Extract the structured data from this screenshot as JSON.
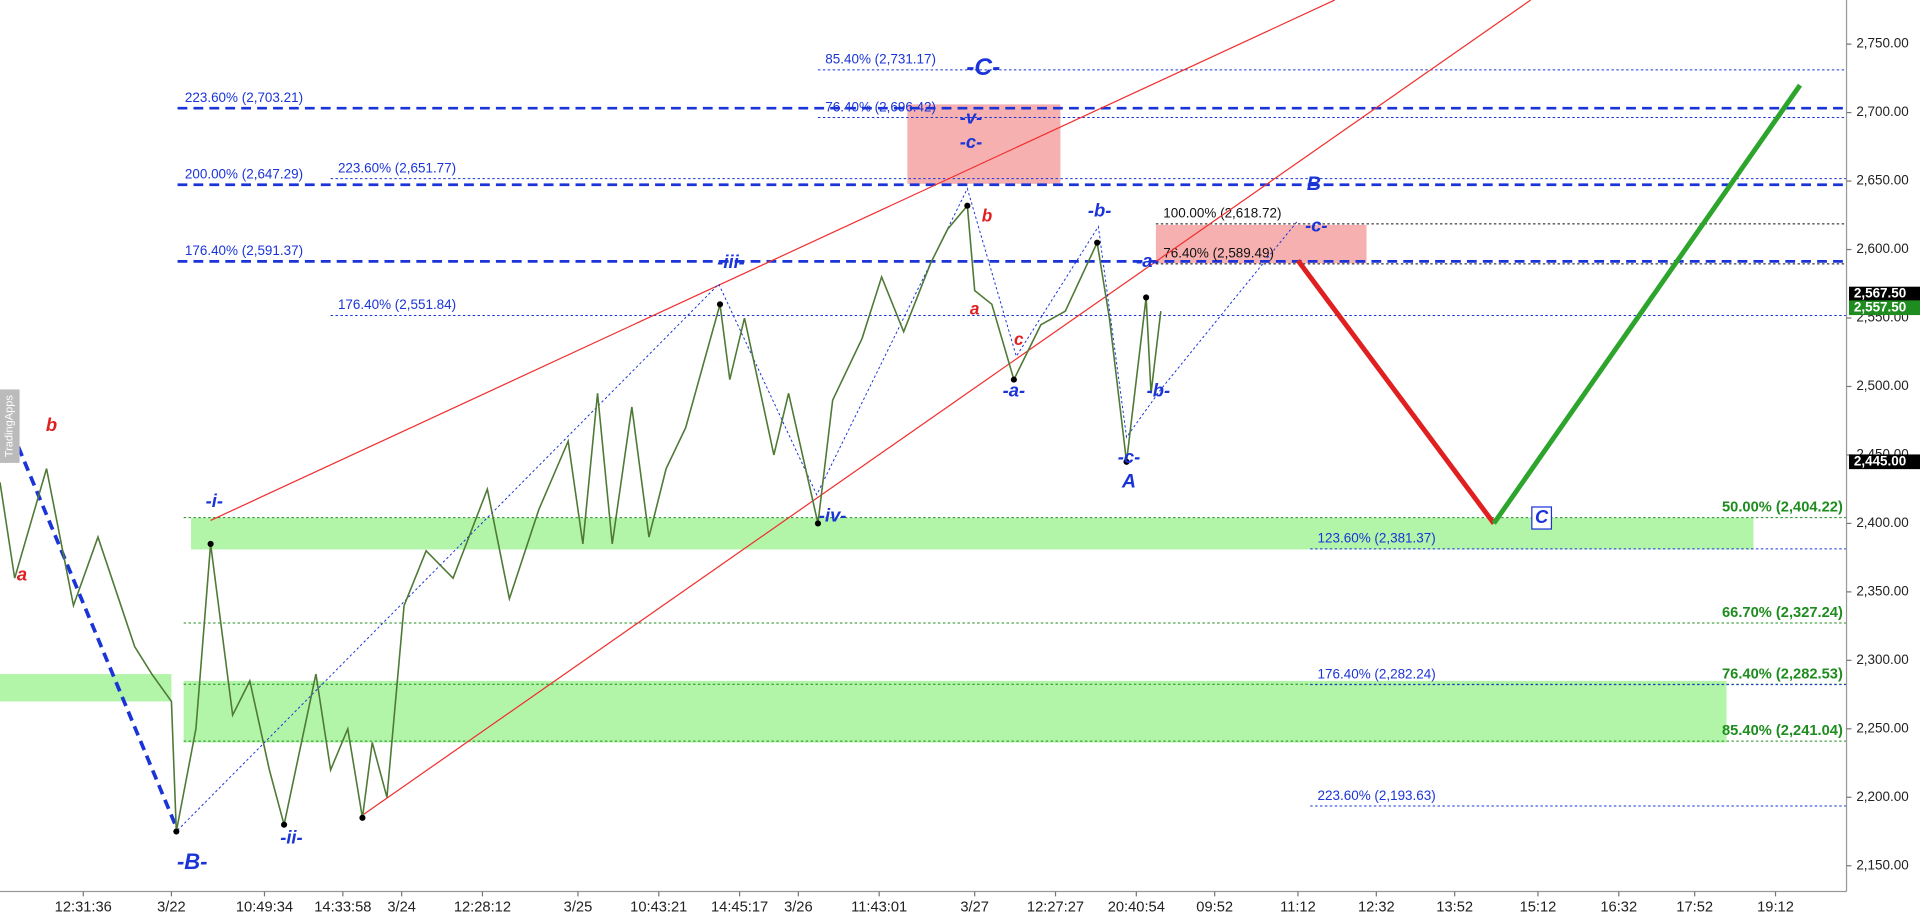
{
  "chart_data": {
    "type": "line",
    "watermark": "TradingApps",
    "xlim": [
      0,
      377
    ],
    "xticks": [
      {
        "value": 17,
        "label": "12:31:36"
      },
      {
        "value": 35,
        "label": "3/22"
      },
      {
        "value": 54,
        "label": "10:49:34"
      },
      {
        "value": 70,
        "label": "14:33:58"
      },
      {
        "value": 82,
        "label": "3/24"
      },
      {
        "value": 98.5,
        "label": "12:28:12"
      },
      {
        "value": 118,
        "label": "3/25"
      },
      {
        "value": 134.5,
        "label": "10:43:21"
      },
      {
        "value": 151,
        "label": "14:45:17"
      },
      {
        "value": 163,
        "label": "3/26"
      },
      {
        "value": 179.5,
        "label": "11:43:01"
      },
      {
        "value": 199,
        "label": "3/27"
      },
      {
        "value": 215.5,
        "label": "12:27:27"
      },
      {
        "value": 232,
        "label": "20:40:54"
      },
      {
        "value": 248,
        "label": "09:52"
      },
      {
        "value": 265,
        "label": "11:12"
      },
      {
        "value": 281,
        "label": "12:32"
      },
      {
        "value": 297,
        "label": "13:52"
      },
      {
        "value": 314,
        "label": "15:12"
      },
      {
        "value": 330.5,
        "label": "16:32"
      },
      {
        "value": 346,
        "label": "17:52"
      },
      {
        "value": 362.5,
        "label": "19:12"
      }
    ],
    "ylim": [
      2150,
      2750
    ],
    "yticks": [
      {
        "value": 2150,
        "label": "2,150.00"
      },
      {
        "value": 2200,
        "label": "2,200.00"
      },
      {
        "value": 2250,
        "label": "2,250.00"
      },
      {
        "value": 2300,
        "label": "2,300.00"
      },
      {
        "value": 2350,
        "label": "2,350.00"
      },
      {
        "value": 2400,
        "label": "2,400.00"
      },
      {
        "value": 2450,
        "label": "2,450.00"
      },
      {
        "value": 2500,
        "label": "2,500.00"
      },
      {
        "value": 2550,
        "label": "2,550.00"
      },
      {
        "value": 2600,
        "label": "2,600.00"
      },
      {
        "value": 2650,
        "label": "2,650.00"
      },
      {
        "value": 2700,
        "label": "2,700.00"
      },
      {
        "value": 2750,
        "label": "2,750.00"
      }
    ],
    "series": [
      {
        "name": "Price",
        "color": "#4f7a36",
        "x": [
          0,
          3,
          9.5,
          15,
          20,
          27.5,
          31,
          35,
          36,
          40,
          43,
          47.5,
          51,
          55,
          58,
          64.5,
          67.5,
          71,
          74,
          76,
          79,
          82.5,
          87,
          92.5,
          99.5,
          104,
          110,
          116,
          119,
          122,
          125,
          129,
          132.5,
          136,
          140,
          147,
          149,
          152,
          158,
          161,
          167,
          170,
          176,
          180,
          184.5,
          190,
          193.5,
          197.5,
          199,
          202.5,
          207,
          212.5,
          217.5,
          224,
          226.5,
          230,
          234,
          235,
          237
        ],
        "values": [
          2430,
          2360,
          2440,
          2340,
          2390,
          2310,
          2290,
          2270,
          2175,
          2250,
          2385,
          2260,
          2285,
          2220,
          2180,
          2290,
          2220,
          2250,
          2185,
          2240,
          2200,
          2340,
          2380,
          2360,
          2425,
          2345,
          2410,
          2460,
          2385,
          2495,
          2385,
          2485,
          2390,
          2440,
          2470,
          2560,
          2505,
          2550,
          2450,
          2495,
          2400,
          2490,
          2535,
          2580,
          2540,
          2590,
          2615,
          2632,
          2570,
          2560,
          2505,
          2545,
          2555,
          2605,
          2550,
          2445,
          2565,
          2495,
          2555
        ]
      },
      {
        "name": "Decline",
        "color": "#e02020",
        "x": [
          265,
          305
        ],
        "values": [
          2592,
          2400
        ]
      },
      {
        "name": "Rally",
        "color": "#2da52d",
        "x": [
          305,
          367.5
        ],
        "values": [
          2400,
          2720
        ]
      }
    ],
    "price_tags": [
      {
        "value": 2567.5,
        "label": "2,567.50",
        "color": "#000000"
      },
      {
        "value": 2557.5,
        "label": "2,557.50",
        "color": "#1e8c1e"
      },
      {
        "value": 2445,
        "label": "2,445.00",
        "color": "#000000"
      }
    ],
    "zones": [
      {
        "low": 2590,
        "high": 2618,
        "color": "#f7b0b0"
      },
      {
        "low": 2648,
        "high": 2706,
        "color": "#f7b0b0"
      },
      {
        "low": 2381,
        "high": 2404,
        "color": "#b2f5a9"
      },
      {
        "low": 2240,
        "high": 2285,
        "color": "#b2f5a9"
      },
      {
        "low": 2270,
        "high": 2290,
        "color": "#b2f5a9"
      }
    ],
    "levels": [
      {
        "value": 2731.17,
        "label": "85.40% (2,731.17)",
        "color": "#1a34d8",
        "style": "minor"
      },
      {
        "value": 2703.21,
        "label": "223.60% (2,703.21)",
        "color": "#1a34d8",
        "style": "major"
      },
      {
        "value": 2696.42,
        "label": "76.40% (2,696.42)",
        "color": "#1a34d8",
        "style": "minor"
      },
      {
        "value": 2651.77,
        "label": "223.60% (2,651.77)",
        "color": "#1a34d8",
        "style": "minor"
      },
      {
        "value": 2647.29,
        "label": "200.00% (2,647.29)",
        "color": "#1a34d8",
        "style": "major"
      },
      {
        "value": 2618.72,
        "label": "100.00% (2,618.72)",
        "color": "#111111",
        "style": "minor"
      },
      {
        "value": 2591.37,
        "label": "176.40% (2,591.37)",
        "color": "#1a34d8",
        "style": "major"
      },
      {
        "value": 2589.49,
        "label": "76.40% (2,589.49)",
        "color": "#111111",
        "style": "minor"
      },
      {
        "value": 2551.84,
        "label": "176.40% (2,551.84)",
        "color": "#1a34d8",
        "style": "minor"
      },
      {
        "value": 2404.22,
        "label": "50.00% (2,404.22)",
        "color": "#1e8c1e",
        "style": "minor"
      },
      {
        "value": 2381.37,
        "label": "123.60% (2,381.37)",
        "color": "#1a34d8",
        "style": "minor"
      },
      {
        "value": 2327.24,
        "label": "66.70% (2,327.24)",
        "color": "#1e8c1e",
        "style": "minor"
      },
      {
        "value": 2282.53,
        "label": "76.40% (2,282.53)",
        "color": "#1e8c1e",
        "style": "minor"
      },
      {
        "value": 2282.24,
        "label": "176.40% (2,282.24)",
        "color": "#1a34d8",
        "style": "minor"
      },
      {
        "value": 2241.04,
        "label": "85.40% (2,241.04)",
        "color": "#1e8c1e",
        "style": "minor"
      },
      {
        "value": 2193.63,
        "label": "223.60% (2,193.63)",
        "color": "#1a34d8",
        "style": "minor"
      }
    ],
    "annotations": [
      {
        "text": "a",
        "color": "#e02020"
      },
      {
        "text": "b",
        "color": "#e02020"
      },
      {
        "text": "-B-",
        "color": "#1a34d8"
      },
      {
        "text": "-i-",
        "color": "#1a34d8"
      },
      {
        "text": "-ii-",
        "color": "#1a34d8"
      },
      {
        "text": "-iii-",
        "color": "#1a34d8"
      },
      {
        "text": "-iv-",
        "color": "#1a34d8"
      },
      {
        "text": "-C-",
        "color": "#1a34d8"
      },
      {
        "text": "-v-",
        "color": "#1a34d8"
      },
      {
        "text": "-c-",
        "color": "#1a34d8"
      },
      {
        "text": "b",
        "color": "#e02020"
      },
      {
        "text": "a",
        "color": "#e02020"
      },
      {
        "text": "c",
        "color": "#e02020"
      },
      {
        "text": "-a-",
        "color": "#1a34d8"
      },
      {
        "text": "-b-",
        "color": "#1a34d8"
      },
      {
        "text": "-a-",
        "color": "#1a34d8"
      },
      {
        "text": "-b-",
        "color": "#1a34d8"
      },
      {
        "text": "-c-",
        "color": "#1a34d8"
      },
      {
        "text": "A",
        "color": "#1a34d8"
      },
      {
        "text": "B",
        "color": "#1a34d8"
      },
      {
        "text": "-c-",
        "color": "#1a34d8"
      },
      {
        "text": "C",
        "color": "#1a34d8"
      }
    ]
  }
}
